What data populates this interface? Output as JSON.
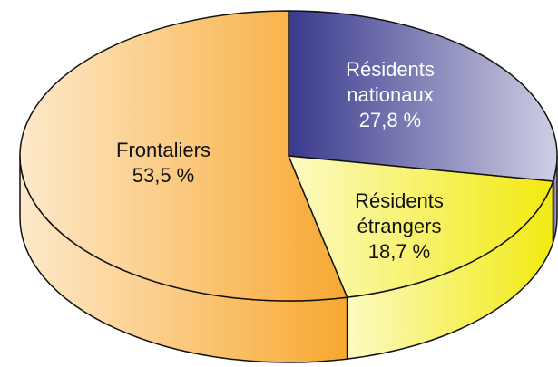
{
  "chart_data": {
    "type": "pie",
    "categories": [
      "Frontaliers",
      "Résidents nationaux",
      "Résidents étrangers"
    ],
    "values": [
      53.5,
      27.8,
      18.7
    ],
    "value_labels": [
      "53,5 %",
      "27,8 %",
      "18,7 %"
    ],
    "colors": [
      "#f8a830",
      "#3a3a8e",
      "#f2ea10"
    ],
    "start": "top",
    "direction": "clockwise",
    "three_d": true
  }
}
